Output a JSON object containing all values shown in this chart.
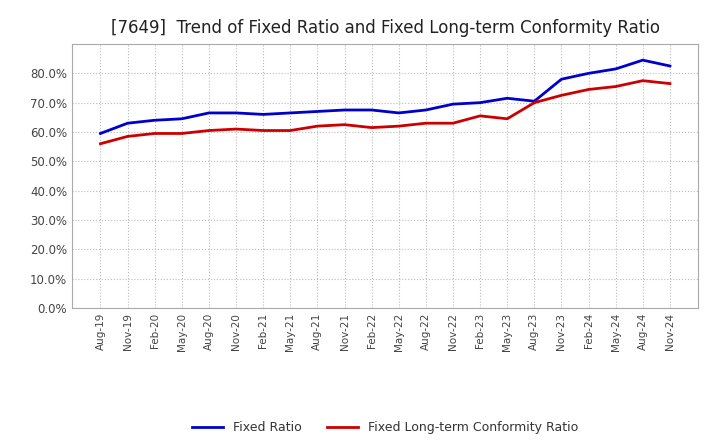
{
  "title": "[7649]  Trend of Fixed Ratio and Fixed Long-term Conformity Ratio",
  "title_fontsize": 12,
  "background_color": "#ffffff",
  "plot_bg_color": "#ffffff",
  "grid_color": "#bbbbbb",
  "x_labels": [
    "Aug-19",
    "Nov-19",
    "Feb-20",
    "May-20",
    "Aug-20",
    "Nov-20",
    "Feb-21",
    "May-21",
    "Aug-21",
    "Nov-21",
    "Feb-22",
    "May-22",
    "Aug-22",
    "Nov-22",
    "Feb-23",
    "May-23",
    "Aug-23",
    "Nov-23",
    "Feb-24",
    "May-24",
    "Aug-24",
    "Nov-24"
  ],
  "fixed_ratio": [
    59.5,
    63.0,
    64.0,
    64.5,
    66.5,
    66.5,
    66.0,
    66.5,
    67.0,
    67.5,
    67.5,
    66.5,
    67.5,
    69.5,
    70.0,
    71.5,
    70.5,
    78.0,
    80.0,
    81.5,
    84.5,
    82.5
  ],
  "fixed_lt_ratio": [
    56.0,
    58.5,
    59.5,
    59.5,
    60.5,
    61.0,
    60.5,
    60.5,
    62.0,
    62.5,
    61.5,
    62.0,
    63.0,
    63.0,
    65.5,
    64.5,
    70.0,
    72.5,
    74.5,
    75.5,
    77.5,
    76.5
  ],
  "fixed_ratio_color": "#0000cc",
  "fixed_lt_ratio_color": "#cc0000",
  "ylim": [
    0,
    90
  ],
  "yticks": [
    0,
    10,
    20,
    30,
    40,
    50,
    60,
    70,
    80
  ],
  "legend_labels": [
    "Fixed Ratio",
    "Fixed Long-term Conformity Ratio"
  ],
  "line_width": 2.0
}
